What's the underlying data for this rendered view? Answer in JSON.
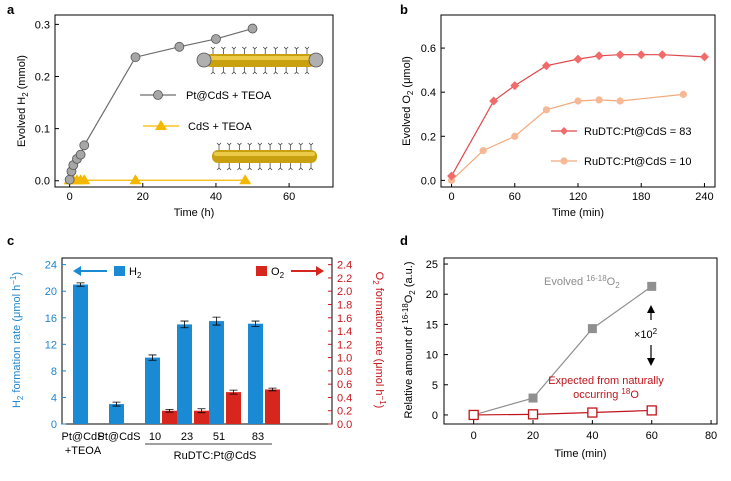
{
  "panels": {
    "a": "a",
    "b": "b",
    "c": "c",
    "d": "d"
  },
  "colors": {
    "gray_marker": "#a6a6a6",
    "gray_line": "#6d6d6d",
    "yellow": "#f5b800",
    "rod": "#c8a010",
    "red_line": "#e0474c",
    "red_marker": "#f26b6b",
    "orange_line": "#f2a97a",
    "orange_marker": "#f7b995",
    "blue": "#1a8ad4",
    "blue_axis": "#1f86cf",
    "red_bar": "#d7261e",
    "red_axis": "#c8161d",
    "dark_red": "#c0141b",
    "gray_sq": "#8f8f8f",
    "gray_text": "#8c8c8c"
  },
  "chart_data": [
    {
      "panel": "a",
      "type": "scatter",
      "xlabel": "Time (h)",
      "ylabel": "Evolved H2 (mmol)",
      "xlim": [
        -4,
        72
      ],
      "ylim": [
        -0.012,
        0.318
      ],
      "xticks": [
        0,
        20,
        40,
        60
      ],
      "yticks": [
        0.0,
        0.1,
        0.2,
        0.3
      ],
      "ytick_labels": [
        "0.0",
        "0.1",
        "0.2",
        "0.3"
      ],
      "series": [
        {
          "name": "Pt@CdS + TEOA",
          "x": [
            0,
            0.5,
            1,
            2,
            3,
            4,
            18,
            30,
            40,
            50
          ],
          "y": [
            0.002,
            0.018,
            0.03,
            0.042,
            0.05,
            0.068,
            0.237,
            0.257,
            0.272,
            0.292
          ]
        },
        {
          "name": "CdS + TEOA",
          "x": [
            0,
            1,
            2,
            3,
            4,
            18,
            48
          ],
          "y": [
            0.001,
            0.001,
            0.001,
            0.001,
            0.001,
            0.001,
            0.001
          ]
        }
      ]
    },
    {
      "panel": "b",
      "type": "line",
      "xlabel": "Time (min)",
      "ylabel": "Evolved O2 (μmol)",
      "xlim": [
        -10,
        250
      ],
      "ylim": [
        -0.03,
        0.75
      ],
      "xticks": [
        0,
        60,
        120,
        180,
        240
      ],
      "yticks": [
        0.0,
        0.2,
        0.4,
        0.6
      ],
      "ytick_labels": [
        "0.0",
        "0.2",
        "0.4",
        "0.6"
      ],
      "series": [
        {
          "name": "RuDTC:Pt@CdS = 83",
          "x": [
            0,
            40,
            60,
            90,
            120,
            140,
            160,
            180,
            200,
            240
          ],
          "y": [
            0.02,
            0.36,
            0.43,
            0.52,
            0.55,
            0.565,
            0.57,
            0.57,
            0.57,
            0.56
          ]
        },
        {
          "name": "RuDTC:Pt@CdS = 10",
          "x": [
            0,
            30,
            60,
            90,
            120,
            140,
            160,
            220
          ],
          "y": [
            0.0,
            0.135,
            0.2,
            0.32,
            0.36,
            0.365,
            0.36,
            0.39
          ]
        }
      ]
    },
    {
      "panel": "c",
      "type": "bar",
      "xlabel": "RuDTC:Pt@CdS",
      "categories": [
        "Pt@CdS",
        "Pt@CdS",
        "10",
        "23",
        "51",
        "83"
      ],
      "category_sublabels": [
        "+TEOA",
        "",
        "",
        "",
        "",
        ""
      ],
      "ylabel": "H2 formation rate (μmol h−1)",
      "y2label": "O2 formation rate (μmol h−1)",
      "ylim": [
        0,
        25
      ],
      "y2lim": [
        0,
        2.5
      ],
      "yticks": [
        0,
        4,
        8,
        12,
        16,
        20,
        24
      ],
      "y2ticks": [
        0.0,
        0.2,
        0.4,
        0.6,
        0.8,
        1.0,
        1.2,
        1.4,
        1.6,
        1.8,
        2.0,
        2.2,
        2.4
      ],
      "y2tick_labels": [
        "0.0",
        "0.2",
        "0.4",
        "0.6",
        "0.8",
        "1.0",
        "1.2",
        "1.4",
        "1.6",
        "1.8",
        "2.0",
        "2.2",
        "2.4"
      ],
      "series": [
        {
          "name": "H2",
          "axis": "left",
          "values": [
            21.0,
            3.0,
            10.0,
            15.0,
            15.5,
            15.1
          ],
          "errors": [
            0.25,
            0.3,
            0.4,
            0.5,
            0.6,
            0.4
          ]
        },
        {
          "name": "O2",
          "axis": "right",
          "values": [
            null,
            null,
            0.2,
            0.2,
            0.48,
            0.52
          ],
          "errors": [
            null,
            null,
            0.02,
            0.03,
            0.03,
            0.02
          ]
        }
      ]
    },
    {
      "panel": "d",
      "type": "line",
      "xlabel": "Time (min)",
      "ylabel": "Relative amount of 16-18O2 (a.u.)",
      "xlim": [
        -10,
        82
      ],
      "ylim": [
        -1.5,
        26
      ],
      "xticks": [
        0,
        20,
        40,
        60,
        80
      ],
      "yticks": [
        0,
        5,
        10,
        15,
        20,
        25
      ],
      "series": [
        {
          "name": "Evolved 16-18O2",
          "x": [
            0,
            20,
            40,
            60
          ],
          "y": [
            0,
            2.8,
            14.3,
            21.3
          ]
        },
        {
          "name": "Expected from naturally occurring 18O",
          "x": [
            0,
            20,
            40,
            60
          ],
          "y": [
            0,
            0.1,
            0.4,
            0.75
          ]
        }
      ],
      "annotations": {
        "scale": "×10",
        "scale_exp": "2"
      }
    }
  ],
  "legend_text": {
    "b_83": "RuDTC:Pt@CdS = 83",
    "b_10": "RuDTC:Pt@CdS = 10",
    "d_evolved_pre": "Evolved ",
    "d_evolved_sup": "16-18",
    "d_evolved_post": "O",
    "d_evolved_sub": "2",
    "d_expected_1": "Expected from naturally",
    "d_expected_2_pre": "occurring ",
    "d_expected_sup": "18",
    "d_expected_post": "O"
  },
  "axis_text": {
    "a_y_pre": "Evolved H",
    "a_y_sub": "2",
    "a_y_post": " (mmol)",
    "b_y_pre": "Evolved O",
    "b_y_sub": "2",
    "b_y_post": " (μmol)",
    "c_y_pre": "H",
    "c_y_sub": "2",
    "c_y_post": " formation rate (μmol h",
    "c_y_sup": "−1",
    "c_y_end": ")",
    "c_y2_pre": "O",
    "c_y2_sub": "2",
    "c_y2_post": " formation rate (μmol h",
    "c_y2_sup": "−1",
    "c_y2_end": ")",
    "c_h2_pre": "H",
    "c_h2_sub": "2",
    "c_o2_pre": "O",
    "c_o2_sub": "2",
    "d_y_pre": "Relative amount of ",
    "d_y_sup": "16-18",
    "d_y_post": "O",
    "d_y_sub": "2",
    "d_y_end": " (a.u.)"
  }
}
